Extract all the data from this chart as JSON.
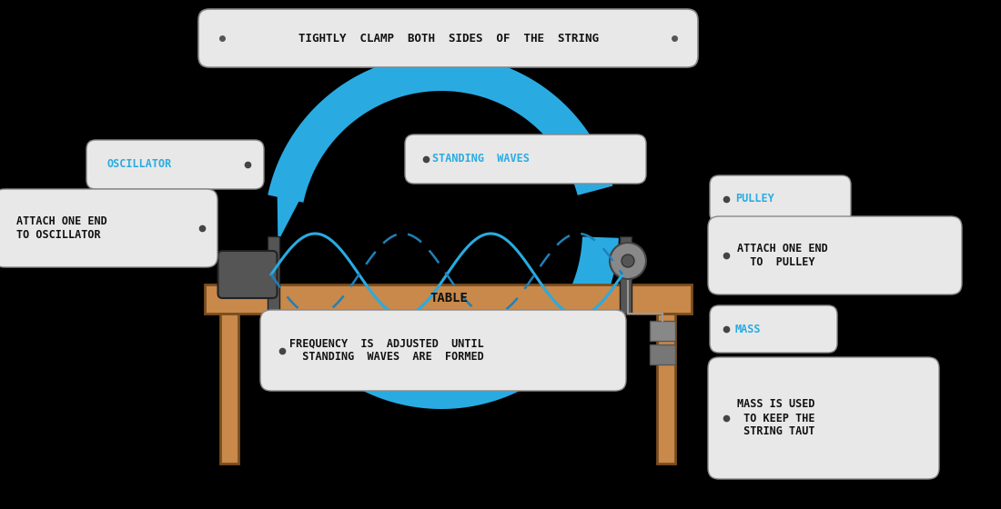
{
  "bg_color": "#000000",
  "table_color": "#c8894a",
  "table_edge_color": "#7a4e20",
  "dark_post_color": "#4a4a4a",
  "wave_color": "#29abe2",
  "wave_dashed_color": "#2080b8",
  "label_bg": "#e8e8e8",
  "label_text_color": "#111111",
  "blue_label_color": "#29abe2",
  "title_top": "TIGHTLY  CLAMP  BOTH  SIDES  OF  THE  STRING",
  "label_oscillator": "OSCILLATOR",
  "label_standing_waves": "STANDING  WAVES",
  "label_pulley": "PULLEY",
  "label_attach_osc": "ATTACH ONE END\nTO OSCILLATOR",
  "label_attach_pul": "ATTACH ONE END\n  TO  PULLEY",
  "label_table": "TABLE",
  "label_freq": "FREQUENCY  IS  ADJUSTED  UNTIL\n  STANDING  WAVES  ARE  FORMED",
  "label_mass": "MASS",
  "label_mass_desc": "MASS IS USED\n TO KEEP THE\n STRING TAUT"
}
